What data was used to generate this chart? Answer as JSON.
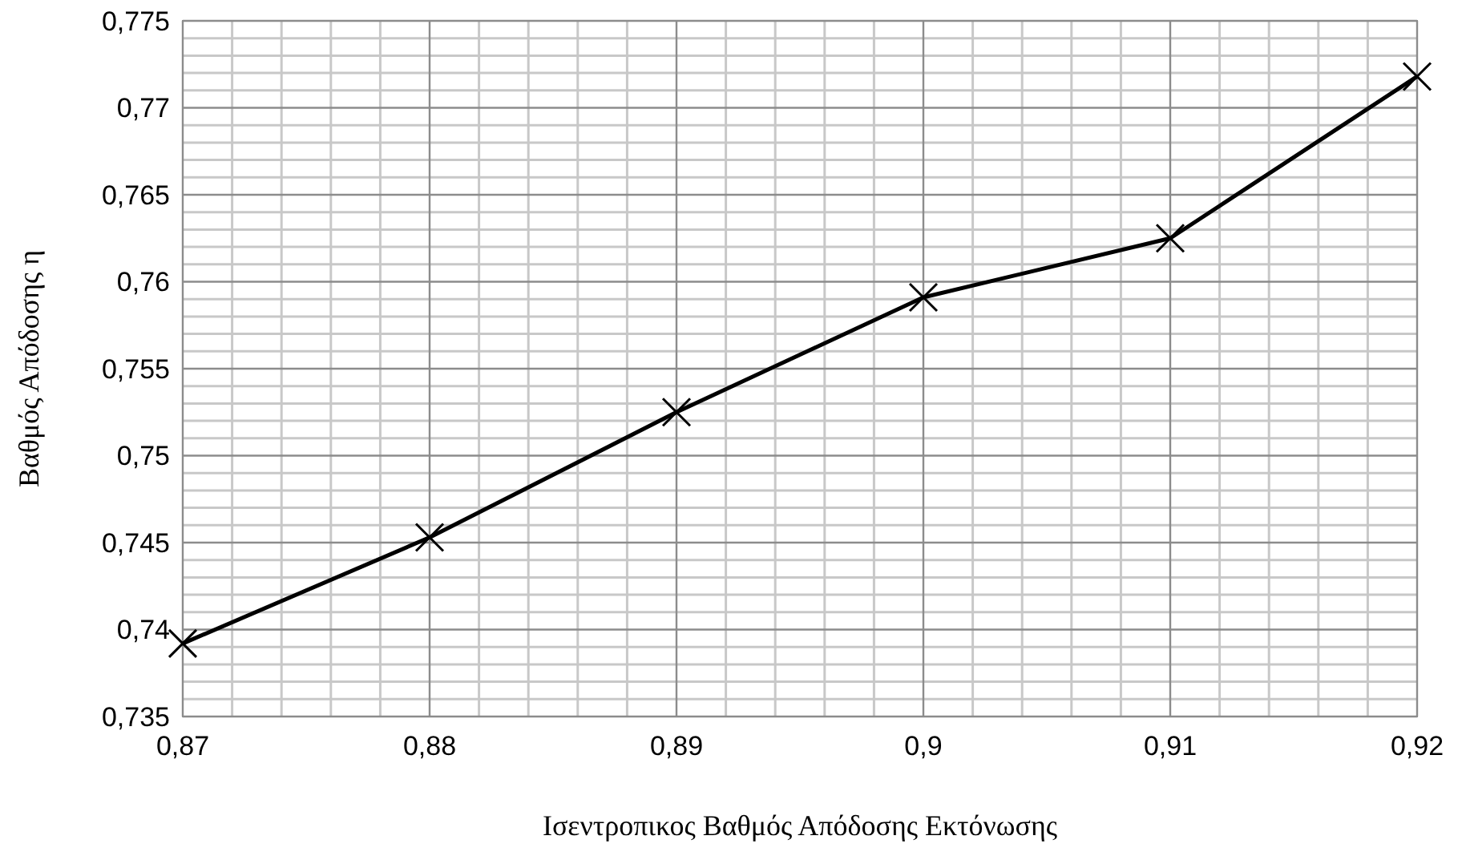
{
  "chart_data": {
    "type": "line",
    "xlabel": "Ισεντροπικος Βαθμός Απόδοσης Εκτόνωσης",
    "ylabel": "Βαθμός Απόδοσης η",
    "x": [
      0.87,
      0.88,
      0.89,
      0.9,
      0.91,
      0.92
    ],
    "series": [
      {
        "color": "#000000",
        "values": [
          0.7392,
          0.7453,
          0.7525,
          0.7591,
          0.7625,
          0.7718
        ]
      }
    ],
    "xlim": [
      0.87,
      0.92
    ],
    "xticks": [
      {
        "value": 0.87,
        "label": "0,87"
      },
      {
        "value": 0.88,
        "label": "0,88"
      },
      {
        "value": 0.89,
        "label": "0,89"
      },
      {
        "value": 0.9,
        "label": "0,9"
      },
      {
        "value": 0.91,
        "label": "0,91"
      },
      {
        "value": 0.92,
        "label": "0,92"
      }
    ],
    "ylim": [
      0.735,
      0.775
    ],
    "yticks": [
      {
        "value": 0.735,
        "label": "0,735"
      },
      {
        "value": 0.74,
        "label": "0,74"
      },
      {
        "value": 0.745,
        "label": "0,745"
      },
      {
        "value": 0.75,
        "label": "0,75"
      },
      {
        "value": 0.755,
        "label": "0,755"
      },
      {
        "value": 0.76,
        "label": "0,76"
      },
      {
        "value": 0.765,
        "label": "0,765"
      },
      {
        "value": 0.77,
        "label": "0,77"
      },
      {
        "value": 0.775,
        "label": "0,775"
      }
    ],
    "grid": true,
    "marker": "cross",
    "line_style": "solid"
  }
}
